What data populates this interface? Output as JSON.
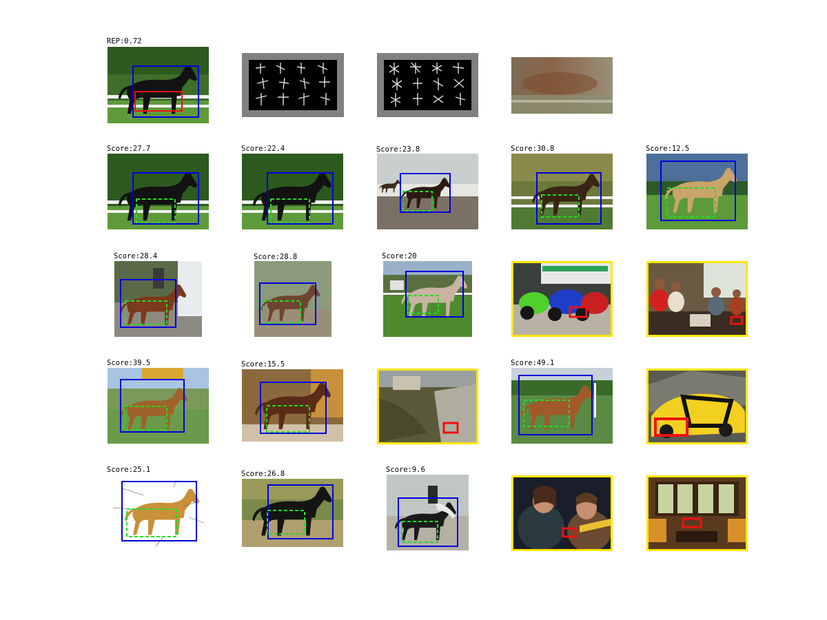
{
  "figure": {
    "row1": {
      "rep_label": "REP:0.72"
    },
    "row2": {
      "labels": [
        "Score:27.7",
        "Score:22.4",
        "Score:23.8",
        "Score:30.8",
        "Score:12.5"
      ]
    },
    "row3": {
      "labels": [
        "Score:28.4",
        "Score:28.8",
        "Score:20"
      ]
    },
    "row4": {
      "labels": [
        "Score:39.5",
        "Score:15.5",
        "Score:49.1"
      ]
    },
    "row5": {
      "labels": [
        "Score:25.1",
        "Score:26.8",
        "Score:9.6"
      ]
    }
  },
  "colors": {
    "detection_box": "#0000dd",
    "part_box": "#22dd22",
    "query_part": "#ee1111",
    "false_positive_border": "#ffe600"
  },
  "icons": [
    "horse-photo",
    "hog-template",
    "average-image",
    "motorcycle-photo",
    "people-photo",
    "car-photo",
    "room-photo"
  ]
}
